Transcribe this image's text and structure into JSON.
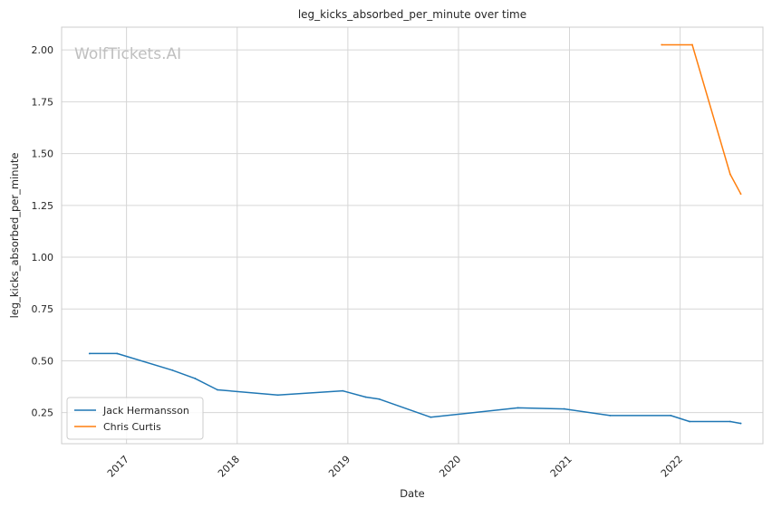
{
  "chart_data": {
    "type": "line",
    "title": "leg_kicks_absorbed_per_minute over time",
    "xlabel": "Date",
    "ylabel": "leg_kicks_absorbed_per_minute",
    "watermark": "WolfTickets.AI",
    "x_ticks": [
      "2017",
      "2018",
      "2019",
      "2020",
      "2021",
      "2022"
    ],
    "y_ticks": [
      "0.25",
      "0.50",
      "0.75",
      "1.00",
      "1.25",
      "1.50",
      "1.75",
      "2.00"
    ],
    "xlim": [
      "2016-06-01",
      "2022-10-01"
    ],
    "ylim": [
      0.1,
      2.11
    ],
    "grid": true,
    "legend_position": "lower-left",
    "series": [
      {
        "name": "Jack Hermansson",
        "color": "#1f77b4",
        "points": [
          {
            "x": "2016-09-01",
            "y": 0.535
          },
          {
            "x": "2016-12-01",
            "y": 0.535
          },
          {
            "x": "2017-06-01",
            "y": 0.455
          },
          {
            "x": "2017-08-15",
            "y": 0.415
          },
          {
            "x": "2017-10-28",
            "y": 0.36
          },
          {
            "x": "2018-05-15",
            "y": 0.335
          },
          {
            "x": "2018-12-15",
            "y": 0.355
          },
          {
            "x": "2019-03-01",
            "y": 0.325
          },
          {
            "x": "2019-04-15",
            "y": 0.315
          },
          {
            "x": "2019-10-01",
            "y": 0.228
          },
          {
            "x": "2020-07-15",
            "y": 0.273
          },
          {
            "x": "2020-12-15",
            "y": 0.268
          },
          {
            "x": "2021-05-15",
            "y": 0.236
          },
          {
            "x": "2021-12-01",
            "y": 0.236
          },
          {
            "x": "2022-02-01",
            "y": 0.207
          },
          {
            "x": "2022-06-15",
            "y": 0.207
          },
          {
            "x": "2022-07-20",
            "y": 0.198
          }
        ]
      },
      {
        "name": "Chris Curtis",
        "color": "#ff7f0e",
        "points": [
          {
            "x": "2021-11-01",
            "y": 2.025
          },
          {
            "x": "2022-02-10",
            "y": 2.025
          },
          {
            "x": "2022-06-15",
            "y": 1.4
          },
          {
            "x": "2022-07-20",
            "y": 1.305
          }
        ]
      }
    ]
  }
}
